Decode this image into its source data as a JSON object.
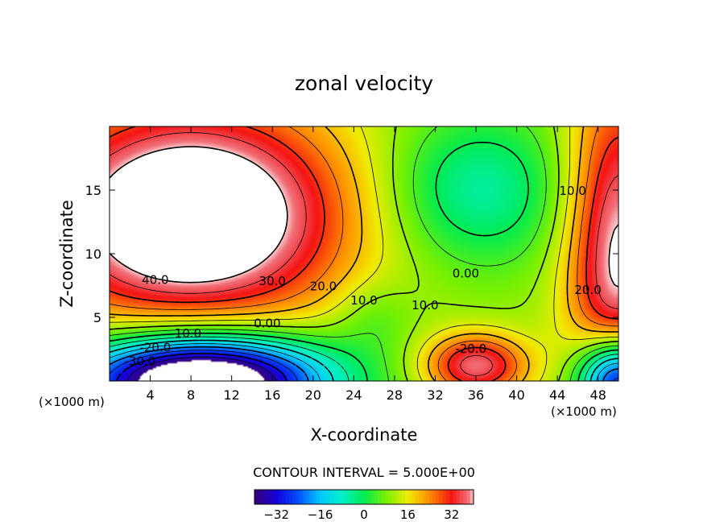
{
  "chart_data": {
    "type": "heatmap",
    "subtype": "filled-contour",
    "title": "zonal velocity",
    "xlabel": "X-coordinate",
    "ylabel": "Z-coordinate",
    "x_unit_left": "(×1000 m)",
    "x_unit_right": "(×1000 m)",
    "xlim": [
      0,
      50
    ],
    "ylim": [
      0,
      20
    ],
    "x_ticks": [
      4,
      8,
      12,
      16,
      20,
      24,
      28,
      32,
      36,
      40,
      44,
      48
    ],
    "x_tick_labels": [
      "4",
      "8",
      "12",
      "16",
      "20",
      "24",
      "28",
      "32",
      "36",
      "40",
      "44",
      "48"
    ],
    "y_ticks": [
      5,
      10,
      15
    ],
    "y_tick_labels": [
      "5",
      "10",
      "15"
    ],
    "contour_interval_text": "CONTOUR INTERVAL = 5.000E+00",
    "contour_labels": [
      {
        "text": "40.0",
        "x": 4.5,
        "y": 8.0
      },
      {
        "text": "30.0",
        "x": 16.0,
        "y": 7.9
      },
      {
        "text": "20.0",
        "x": 21.0,
        "y": 7.5
      },
      {
        "text": "10.0",
        "x": 25.0,
        "y": 6.4
      },
      {
        "text": "0.00",
        "x": 15.5,
        "y": 4.6
      },
      {
        "text": "-10.0",
        "x": 7.5,
        "y": 3.8
      },
      {
        "text": "-20.0",
        "x": 4.5,
        "y": 2.7
      },
      {
        "text": "-30.0",
        "x": 3.0,
        "y": 1.6
      },
      {
        "text": "10.0",
        "x": 31.0,
        "y": 6.0
      },
      {
        "text": "0.00",
        "x": 35.0,
        "y": 8.5
      },
      {
        "text": "-20.0",
        "x": 35.5,
        "y": 2.6
      },
      {
        "text": "10.0",
        "x": 45.5,
        "y": 15.0
      },
      {
        "text": "20.0",
        "x": 47.0,
        "y": 7.2
      }
    ],
    "colorbar": {
      "range": [
        -40,
        40
      ],
      "ticks": [
        -32,
        -16,
        0,
        16,
        32
      ],
      "tick_labels": [
        "−32",
        "−16",
        "0",
        "16",
        "32"
      ]
    }
  }
}
